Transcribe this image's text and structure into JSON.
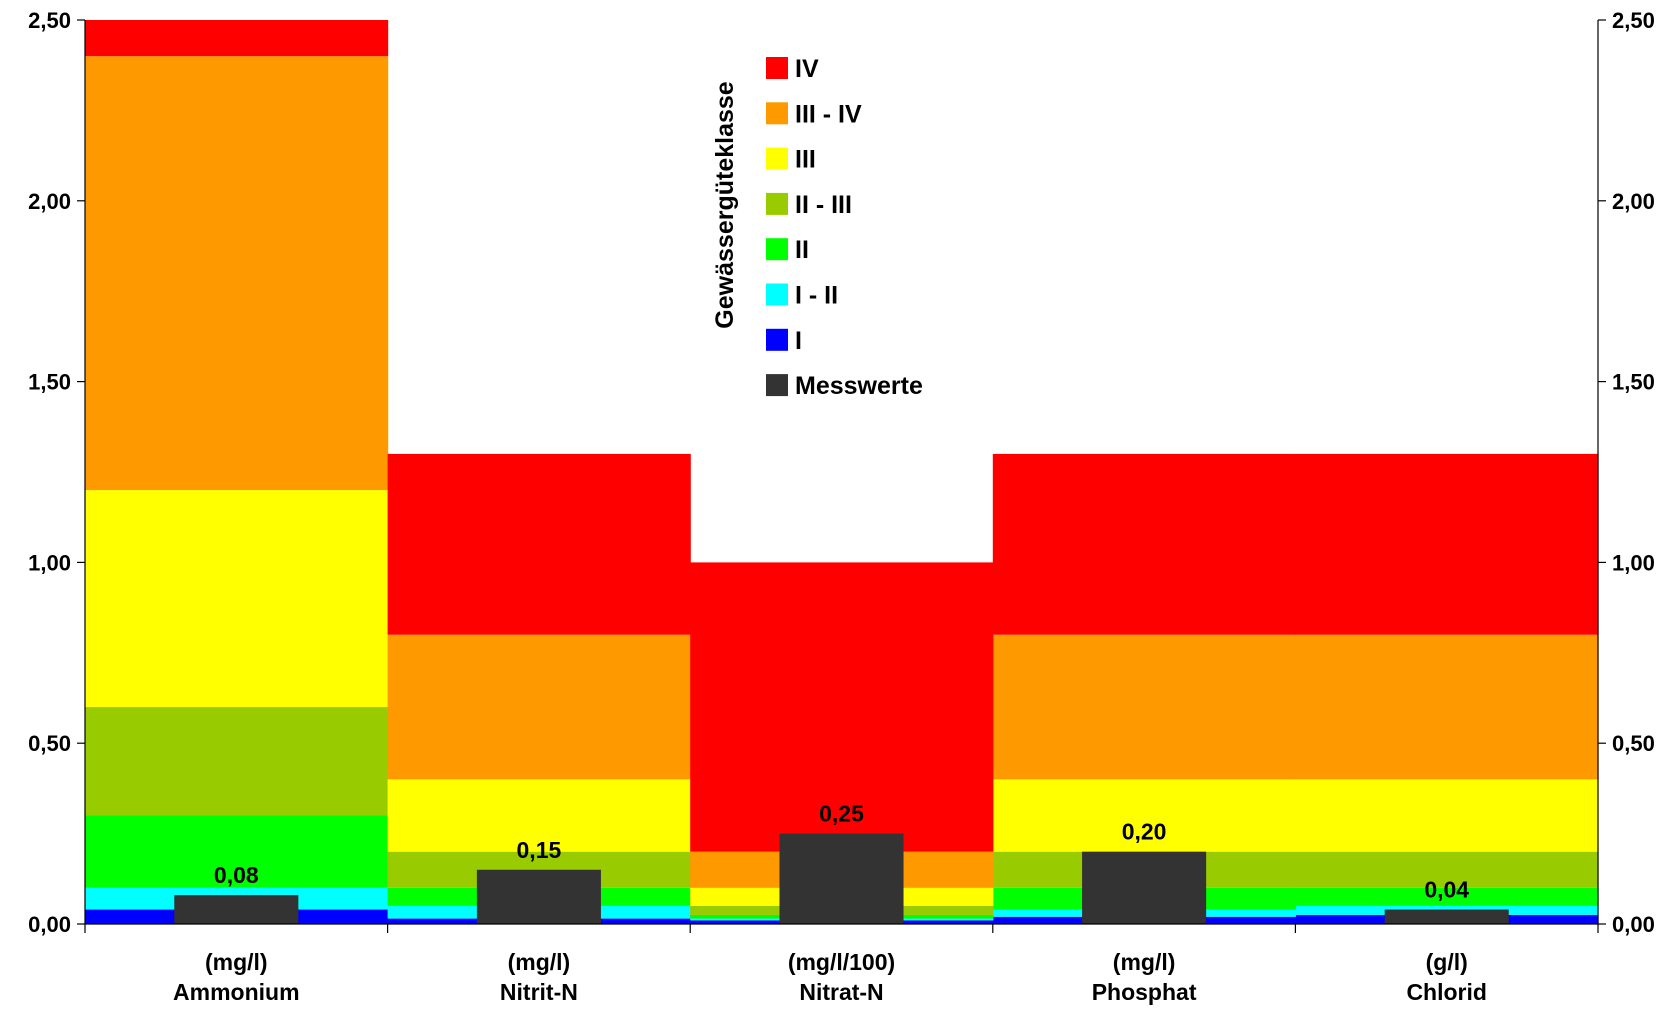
{
  "chart_data": {
    "type": "bar",
    "title": "",
    "xlabel": "",
    "ylabel": "",
    "ylim": [
      0,
      2.5
    ],
    "yticks": [
      "0,00",
      "0,50",
      "1,00",
      "1,50",
      "2,00",
      "2,50"
    ],
    "ytick_values": [
      0,
      0.5,
      1.0,
      1.5,
      2.0,
      2.5
    ],
    "grid": false,
    "legend_title": "Gewässergüteklasse",
    "legend_position": "top-center",
    "categories": [
      {
        "unit": "(mg/l)",
        "name": "Ammonium"
      },
      {
        "unit": "(mg/l)",
        "name": "Nitrit-N"
      },
      {
        "unit": "(mg/l/100)",
        "name": "Nitrat-N"
      },
      {
        "unit": "(mg/l)",
        "name": "Phosphat"
      },
      {
        "unit": "(g/l)",
        "name": "Chlorid"
      }
    ],
    "class_bands": [
      {
        "name": "I",
        "color": "#0000ff",
        "upper": [
          0.04,
          0.015,
          0.01,
          0.02,
          0.025
        ]
      },
      {
        "name": "I - II",
        "color": "#00ffff",
        "upper": [
          0.1,
          0.05,
          0.015,
          0.04,
          0.05
        ]
      },
      {
        "name": "II",
        "color": "#00ff00",
        "upper": [
          0.3,
          0.1,
          0.025,
          0.1,
          0.1
        ]
      },
      {
        "name": "II - III",
        "color": "#99cc00",
        "upper": [
          0.6,
          0.2,
          0.05,
          0.2,
          0.2
        ]
      },
      {
        "name": "III",
        "color": "#ffff00",
        "upper": [
          1.2,
          0.4,
          0.1,
          0.4,
          0.4
        ]
      },
      {
        "name": "III - IV",
        "color": "#ff9900",
        "upper": [
          2.4,
          0.8,
          0.2,
          0.8,
          0.8
        ]
      },
      {
        "name": "IV",
        "color": "#ff0000",
        "upper": [
          2.5,
          1.3,
          1.0,
          1.3,
          1.3
        ]
      }
    ],
    "series": [
      {
        "name": "Messwerte",
        "color": "#333333",
        "values": [
          0.08,
          0.15,
          0.25,
          0.2,
          0.04
        ],
        "labels": [
          "0,08",
          "0,15",
          "0,25",
          "0,20",
          "0,04"
        ]
      }
    ],
    "legend_order": [
      "IV",
      "III - IV",
      "III",
      "II - III",
      "II",
      "I - II",
      "I",
      "Messwerte"
    ]
  }
}
